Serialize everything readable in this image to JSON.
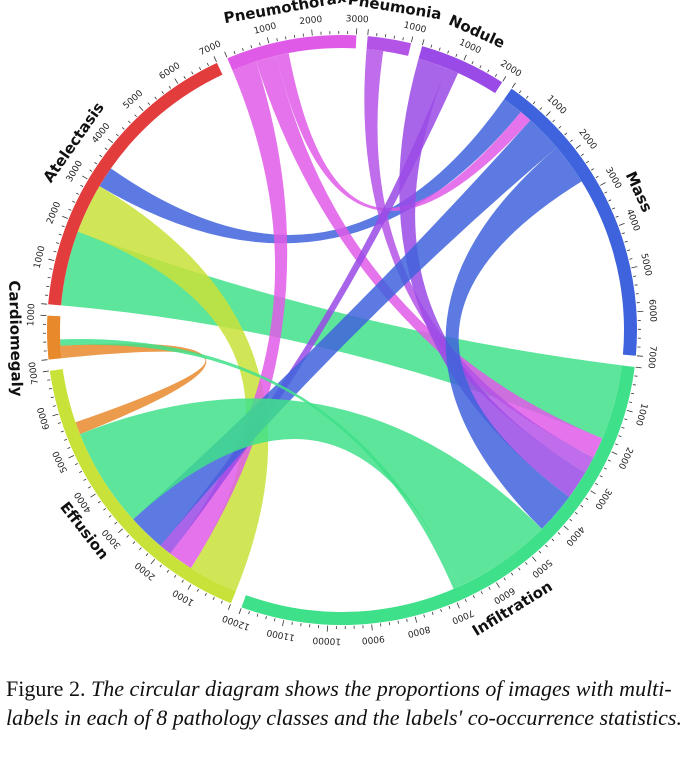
{
  "diagram": {
    "type": "chord",
    "classes": [
      {
        "name": "Atelectasis",
        "color": "#e23c3c",
        "total": 7000
      },
      {
        "name": "Pneumothorax",
        "color": "#e05ae8",
        "total": 3000
      },
      {
        "name": "Pneumonia",
        "color": "#b454e6",
        "total": 1000
      },
      {
        "name": "Nodule",
        "color": "#9a4ae6",
        "total": 2000
      },
      {
        "name": "Mass",
        "color": "#3f63dc",
        "total": 7000
      },
      {
        "name": "Infiltration",
        "color": "#3fe08a",
        "total": 12000
      },
      {
        "name": "Effusion",
        "color": "#c9e23a",
        "total": 7000
      },
      {
        "name": "Cardiomegaly",
        "color": "#e88a2c",
        "total": 1000
      }
    ],
    "ribbons": [
      {
        "source": "Atelectasis",
        "target": "Infiltration",
        "color": "#3fe08a",
        "value": 1800
      },
      {
        "source": "Atelectasis",
        "target": "Effusion",
        "color": "#c9e23a",
        "value": 1200
      },
      {
        "source": "Atelectasis",
        "target": "Mass",
        "color": "#3f63dc",
        "value": 500
      },
      {
        "source": "Pneumothorax",
        "target": "Effusion",
        "color": "#e05ae8",
        "value": 600
      },
      {
        "source": "Pneumothorax",
        "target": "Infiltration",
        "color": "#e05ae8",
        "value": 500
      },
      {
        "source": "Pneumothorax",
        "target": "Mass",
        "color": "#e05ae8",
        "value": 300
      },
      {
        "source": "Pneumonia",
        "target": "Infiltration",
        "color": "#b454e6",
        "value": 400
      },
      {
        "source": "Nodule",
        "target": "Infiltration",
        "color": "#9a4ae6",
        "value": 700
      },
      {
        "source": "Nodule",
        "target": "Effusion",
        "color": "#9a4ae6",
        "value": 300
      },
      {
        "source": "Mass",
        "target": "Effusion",
        "color": "#3f63dc",
        "value": 900
      },
      {
        "source": "Mass",
        "target": "Infiltration",
        "color": "#3f63dc",
        "value": 1000
      },
      {
        "source": "Infiltration",
        "target": "Effusion",
        "color": "#3fe08a",
        "value": 2400
      },
      {
        "source": "Cardiomegaly",
        "target": "Effusion",
        "color": "#e88a2c",
        "value": 300
      },
      {
        "source": "Cardiomegaly",
        "target": "Infiltration",
        "color": "#3fe08a",
        "value": 150
      }
    ]
  },
  "caption": {
    "figure_no": "Figure 2.",
    "text": "The circular diagram shows the proportions of images with multi-labels in each of 8 pathology classes and the labels' co-occurrence statistics."
  }
}
